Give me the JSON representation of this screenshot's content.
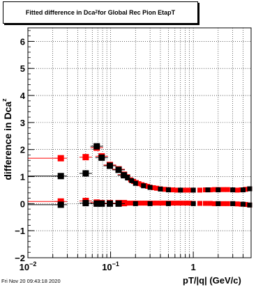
{
  "window": {
    "title_main": "Fitted difference in Dca",
    "title_sub": "Z",
    "title_rest": " for Global Rec Pion EtapT",
    "footer": "Fri Nov 20 09:43:18 2020"
  },
  "chart_data": {
    "type": "scatter",
    "xscale": "log",
    "xlim": [
      0.01,
      5.0
    ],
    "ylim": [
      -2,
      6.5
    ],
    "grid": true,
    "xlabel": "pT/|q| (GeV/c)",
    "ylabel_main": "difference in Dca",
    "ylabel_sub": "z",
    "y_ticks": [
      -2,
      -1,
      0,
      1,
      2,
      3,
      4,
      5,
      6
    ],
    "x_tick_labels": [
      {
        "value": 0.01,
        "base": "10",
        "exp": "−2"
      },
      {
        "value": 0.1,
        "base": "10",
        "exp": "−1"
      },
      {
        "value": 1,
        "base": "1",
        "exp": ""
      }
    ],
    "colors": {
      "red": "#ff0000",
      "black": "#000000"
    },
    "series": [
      {
        "color": "#ff0000",
        "x": [
          0.025,
          0.05,
          0.068,
          0.078,
          0.098,
          0.125,
          0.145,
          0.16,
          0.175,
          0.19,
          0.205,
          0.22,
          0.24,
          0.26,
          0.28,
          0.3,
          0.33,
          0.36,
          0.4,
          0.45,
          0.5,
          0.56,
          0.63,
          0.7,
          0.8,
          0.9,
          1.0,
          1.2,
          1.4,
          1.6,
          1.8,
          2.0,
          2.3,
          2.6,
          3.0,
          3.4,
          3.8,
          4.3,
          4.8
        ],
        "y": [
          1.68,
          1.72,
          2.07,
          1.75,
          1.43,
          1.27,
          1.07,
          0.98,
          0.88,
          0.82,
          0.78,
          0.74,
          0.7,
          0.67,
          0.64,
          0.61,
          0.59,
          0.57,
          0.55,
          0.53,
          0.52,
          0.51,
          0.5,
          0.5,
          0.5,
          0.5,
          0.5,
          0.5,
          0.51,
          0.51,
          0.52,
          0.52,
          0.52,
          0.52,
          0.51,
          0.5,
          0.51,
          0.53,
          0.55
        ]
      },
      {
        "color": "#000000",
        "x": [
          0.025,
          0.05,
          0.068,
          0.078,
          0.098,
          0.125,
          0.145,
          0.16,
          0.18,
          0.2,
          0.25,
          0.3,
          0.4,
          0.5,
          0.7,
          1.0,
          1.5,
          2.0,
          3.0,
          4.0,
          4.8
        ],
        "y": [
          1.02,
          1.12,
          2.12,
          1.7,
          1.4,
          1.25,
          1.05,
          0.95,
          0.85,
          0.75,
          0.66,
          0.6,
          0.54,
          0.51,
          0.5,
          0.5,
          0.51,
          0.51,
          0.51,
          0.51,
          0.55
        ]
      },
      {
        "color": "#ff0000",
        "x": [
          0.025,
          0.05,
          0.068,
          0.078,
          0.098,
          0.125,
          0.145,
          0.16,
          0.175,
          0.19,
          0.205,
          0.22,
          0.24,
          0.26,
          0.28,
          0.3,
          0.33,
          0.36,
          0.4,
          0.45,
          0.5,
          0.56,
          0.63,
          0.7,
          0.8,
          0.9,
          1.0,
          1.2,
          1.4,
          1.6,
          1.8,
          2.0,
          2.3,
          2.6,
          3.0,
          3.4,
          3.8,
          4.3,
          4.8
        ],
        "y": [
          0.08,
          0.1,
          0.04,
          0.02,
          0.02,
          0.02,
          0.02,
          0.02,
          0.02,
          0.02,
          0.02,
          0.02,
          0.02,
          0.02,
          0.02,
          0.02,
          0.02,
          0.02,
          0.02,
          0.02,
          0.02,
          0.02,
          0.02,
          0.02,
          0.02,
          0.02,
          0.01,
          0.01,
          0.01,
          0.01,
          0.0,
          0.0,
          0.0,
          0.0,
          0.0,
          -0.01,
          -0.02,
          -0.03,
          -0.05
        ]
      },
      {
        "color": "#000000",
        "x": [
          0.025,
          0.05,
          0.068,
          0.078,
          0.098,
          0.125,
          0.2,
          0.3,
          0.5,
          1.0,
          2.0,
          3.0,
          4.0,
          4.8
        ],
        "y": [
          -0.04,
          0.02,
          0.0,
          0.0,
          0.0,
          0.0,
          0.0,
          0.0,
          0.0,
          0.0,
          0.0,
          0.0,
          -0.02,
          -0.05
        ]
      }
    ]
  }
}
